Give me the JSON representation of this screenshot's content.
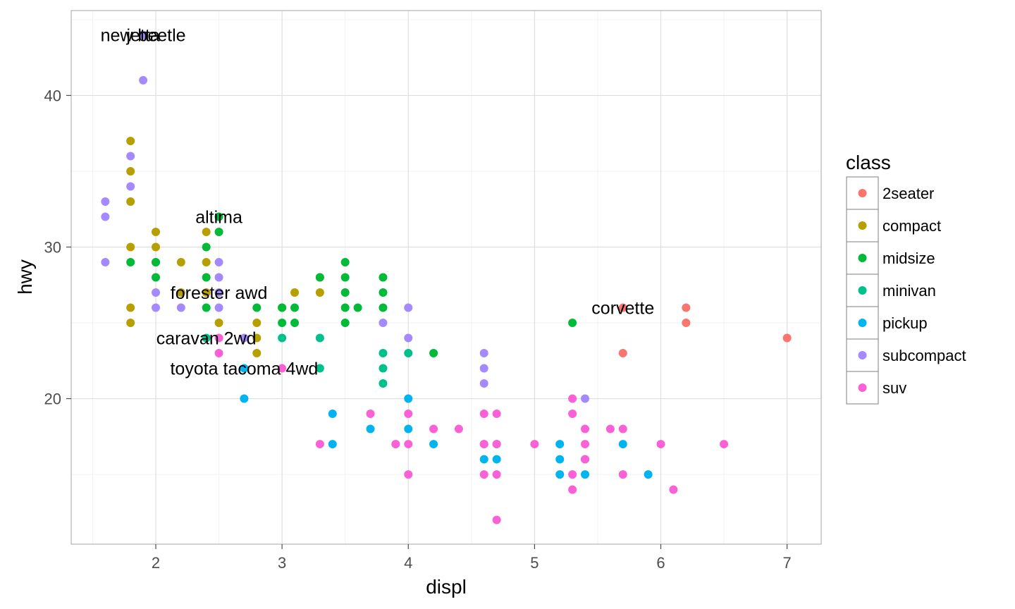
{
  "chart_data": {
    "type": "scatter",
    "xlabel": "displ",
    "ylabel": "hwy",
    "xlim": [
      1.33,
      7.27
    ],
    "ylim": [
      10.4,
      45.6
    ],
    "x_ticks": [
      2,
      3,
      4,
      5,
      6,
      7
    ],
    "y_ticks": [
      20,
      30,
      40
    ],
    "grid": true,
    "legend": {
      "title": "class",
      "position": "right"
    },
    "series": [
      {
        "name": "2seater",
        "color": "#F8766D",
        "points": [
          [
            5.7,
            26
          ],
          [
            5.7,
            23
          ],
          [
            6.2,
            26
          ],
          [
            6.2,
            25
          ],
          [
            7.0,
            24
          ]
        ]
      },
      {
        "name": "compact",
        "color": "#B79F00",
        "points": [
          [
            1.8,
            37
          ],
          [
            1.8,
            35
          ],
          [
            1.8,
            33
          ],
          [
            1.8,
            30
          ],
          [
            1.8,
            26
          ],
          [
            1.8,
            25
          ],
          [
            2.0,
            31
          ],
          [
            2.0,
            30
          ],
          [
            2.0,
            29
          ],
          [
            2.2,
            29
          ],
          [
            2.2,
            27
          ],
          [
            2.4,
            31
          ],
          [
            2.4,
            29
          ],
          [
            2.4,
            27
          ],
          [
            2.5,
            27
          ],
          [
            2.5,
            25
          ],
          [
            2.8,
            25
          ],
          [
            2.8,
            24
          ],
          [
            2.8,
            23
          ],
          [
            3.0,
            26
          ],
          [
            3.1,
            27
          ],
          [
            3.3,
            28
          ],
          [
            3.3,
            27
          ]
        ]
      },
      {
        "name": "midsize",
        "color": "#00BA38",
        "points": [
          [
            1.8,
            29
          ],
          [
            2.0,
            29
          ],
          [
            2.0,
            28
          ],
          [
            2.4,
            30
          ],
          [
            2.4,
            28
          ],
          [
            2.4,
            26
          ],
          [
            2.5,
            32
          ],
          [
            2.5,
            31
          ],
          [
            2.8,
            26
          ],
          [
            3.0,
            26
          ],
          [
            3.0,
            25
          ],
          [
            3.1,
            26
          ],
          [
            3.1,
            25
          ],
          [
            3.3,
            28
          ],
          [
            3.5,
            29
          ],
          [
            3.5,
            28
          ],
          [
            3.5,
            27
          ],
          [
            3.5,
            26
          ],
          [
            3.5,
            25
          ],
          [
            3.6,
            26
          ],
          [
            3.8,
            28
          ],
          [
            3.8,
            27
          ],
          [
            3.8,
            26
          ],
          [
            4.2,
            23
          ],
          [
            5.3,
            25
          ]
        ]
      },
      {
        "name": "minivan",
        "color": "#00C08B",
        "points": [
          [
            2.4,
            24
          ],
          [
            3.0,
            24
          ],
          [
            3.3,
            24
          ],
          [
            3.3,
            22
          ],
          [
            3.8,
            23
          ],
          [
            3.8,
            22
          ],
          [
            3.8,
            21
          ],
          [
            4.0,
            23
          ]
        ]
      },
      {
        "name": "pickup",
        "color": "#00B4F0",
        "points": [
          [
            2.7,
            22
          ],
          [
            2.7,
            20
          ],
          [
            3.4,
            19
          ],
          [
            3.4,
            17
          ],
          [
            3.7,
            18
          ],
          [
            3.9,
            17
          ],
          [
            4.0,
            20
          ],
          [
            4.0,
            18
          ],
          [
            4.2,
            17
          ],
          [
            4.6,
            17
          ],
          [
            4.6,
            16
          ],
          [
            4.7,
            17
          ],
          [
            4.7,
            16
          ],
          [
            5.2,
            17
          ],
          [
            5.2,
            16
          ],
          [
            5.2,
            15
          ],
          [
            5.4,
            16
          ],
          [
            5.4,
            15
          ],
          [
            5.7,
            17
          ],
          [
            5.9,
            15
          ]
        ]
      },
      {
        "name": "subcompact",
        "color": "#A58AFF",
        "points": [
          [
            1.6,
            33
          ],
          [
            1.6,
            32
          ],
          [
            1.6,
            29
          ],
          [
            1.8,
            36
          ],
          [
            1.8,
            34
          ],
          [
            1.9,
            44
          ],
          [
            1.9,
            41
          ],
          [
            2.0,
            27
          ],
          [
            2.0,
            26
          ],
          [
            2.2,
            26
          ],
          [
            2.5,
            29
          ],
          [
            2.5,
            28
          ],
          [
            2.5,
            27
          ],
          [
            2.5,
            26
          ],
          [
            2.7,
            24
          ],
          [
            3.8,
            25
          ],
          [
            4.0,
            26
          ],
          [
            4.0,
            24
          ],
          [
            4.6,
            23
          ],
          [
            4.6,
            22
          ],
          [
            4.6,
            21
          ],
          [
            5.4,
            20
          ]
        ]
      },
      {
        "name": "suv",
        "color": "#FB61D7",
        "points": [
          [
            2.5,
            24
          ],
          [
            2.5,
            23
          ],
          [
            3.0,
            22
          ],
          [
            3.3,
            17
          ],
          [
            3.7,
            19
          ],
          [
            3.9,
            17
          ],
          [
            4.0,
            19
          ],
          [
            4.0,
            17
          ],
          [
            4.0,
            15
          ],
          [
            4.2,
            18
          ],
          [
            4.4,
            18
          ],
          [
            4.6,
            19
          ],
          [
            4.6,
            17
          ],
          [
            4.6,
            15
          ],
          [
            4.7,
            19
          ],
          [
            4.7,
            17
          ],
          [
            4.7,
            15
          ],
          [
            4.7,
            12
          ],
          [
            5.0,
            17
          ],
          [
            5.3,
            20
          ],
          [
            5.3,
            19
          ],
          [
            5.3,
            15
          ],
          [
            5.3,
            14
          ],
          [
            5.4,
            18
          ],
          [
            5.4,
            17
          ],
          [
            5.4,
            16
          ],
          [
            5.6,
            18
          ],
          [
            5.7,
            18
          ],
          [
            5.7,
            15
          ],
          [
            6.0,
            17
          ],
          [
            6.1,
            14
          ],
          [
            6.5,
            17
          ]
        ]
      }
    ],
    "annotations": [
      {
        "text": "new beetle",
        "x": 1.9,
        "y": 44
      },
      {
        "text": "jetta",
        "x": 1.9,
        "y": 44
      },
      {
        "text": "altima",
        "x": 2.5,
        "y": 32
      },
      {
        "text": "forester awd",
        "x": 2.5,
        "y": 27
      },
      {
        "text": "corvette",
        "x": 5.7,
        "y": 26
      },
      {
        "text": "caravan 2wd",
        "x": 2.4,
        "y": 24
      },
      {
        "text": "toyota tacoma 4wd",
        "x": 2.7,
        "y": 22
      }
    ]
  }
}
